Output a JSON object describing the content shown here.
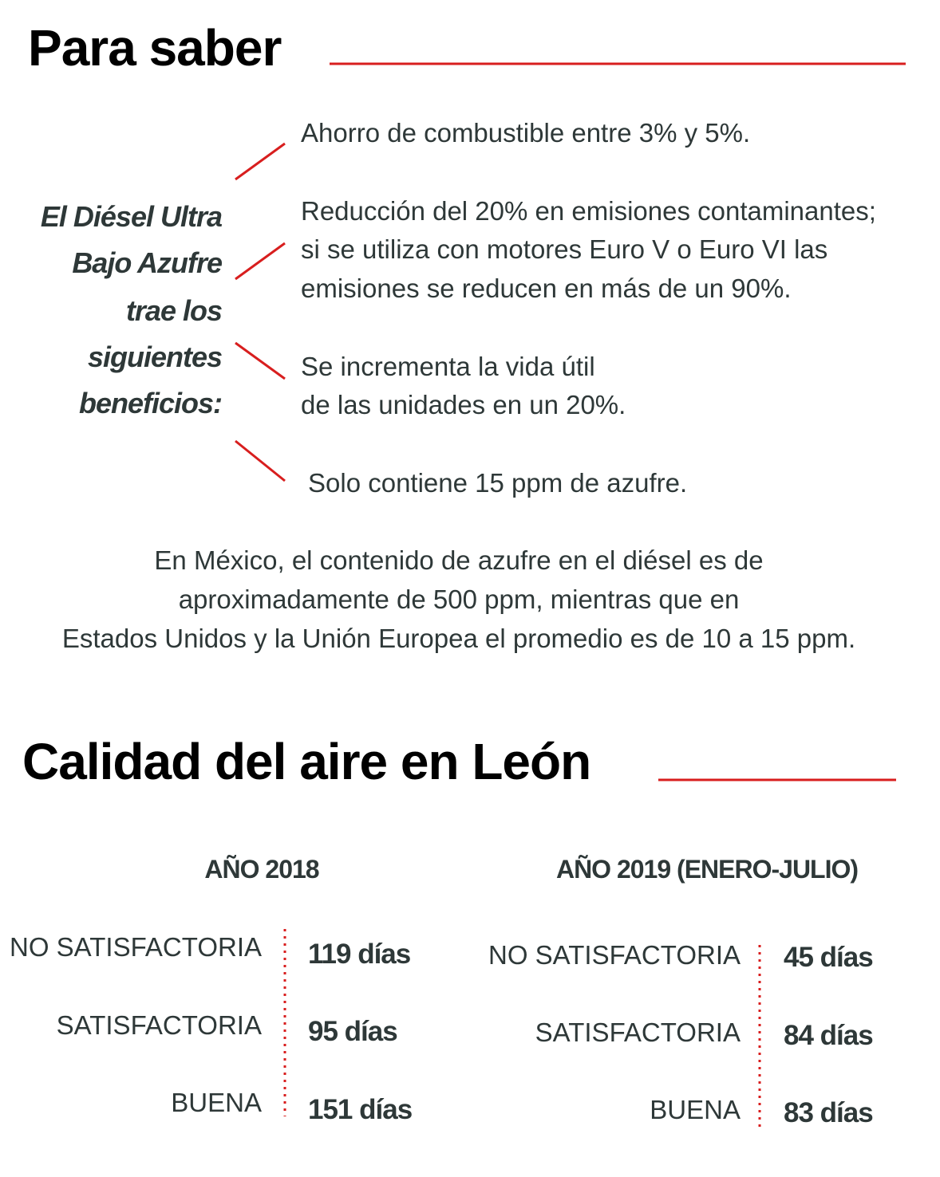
{
  "section1": {
    "title": "Para saber",
    "intro_lines": [
      "El Diésel Ultra",
      "Bajo Azufre",
      "trae los",
      "siguientes",
      "beneficios:"
    ],
    "benefits": [
      {
        "lines": [
          "Ahorro de combustible entre 3% y 5%."
        ]
      },
      {
        "lines": [
          "Reducción del 20% en emisiones contaminantes;",
          "si se utiliza con motores Euro V o Euro VI las",
          "emisiones se reducen en más de un 90%."
        ]
      },
      {
        "lines": [
          "Se incrementa la vida útil",
          "de las unidades en un 20%."
        ]
      },
      {
        "lines": [
          "Solo contiene 15 ppm de azufre."
        ]
      }
    ],
    "note_lines": [
      "En México, el contenido de azufre en el diésel es de",
      "aproximadamente de 500 ppm, mientras que en",
      "Estados Unidos y la Unión Europea el promedio es de 10 a 15 ppm."
    ]
  },
  "section2": {
    "title": "Calidad del aire en León",
    "tables": [
      {
        "heading": "AÑO 2018",
        "rows": [
          {
            "label": "NO SATISFACTORIA",
            "value": "119 días"
          },
          {
            "label": "SATISFACTORIA",
            "value": "95 días"
          },
          {
            "label": "BUENA",
            "value": "151 días"
          }
        ]
      },
      {
        "heading": "AÑO 2019 (ENERO-JULIO)",
        "rows": [
          {
            "label": "NO SATISFACTORIA",
            "value": "45 días"
          },
          {
            "label": "SATISFACTORIA",
            "value": "84 días"
          },
          {
            "label": "BUENA",
            "value": "83 días"
          }
        ]
      }
    ]
  }
}
